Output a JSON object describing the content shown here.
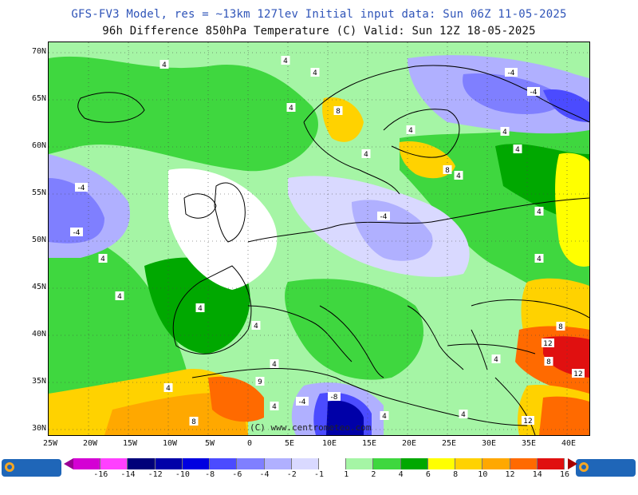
{
  "title_line1": "GFS-FV3 Model, res = ~13km 127lev   Initial input data: Sun 06Z 11-05-2025",
  "title_line2": "96h Difference 850hPa Temperature (C)  Valid: Sun 12Z 18-05-2025",
  "watermark": "(C) www.centrometeo.com",
  "logo_left": "centrometeo",
  "logo_right": "centrometeo",
  "y_axis_labels": [
    "70N",
    "65N",
    "60N",
    "55N",
    "50N",
    "45N",
    "40N",
    "35N",
    "30N"
  ],
  "x_axis_labels": [
    "25W",
    "20W",
    "15W",
    "10W",
    "5W",
    "0",
    "5E",
    "10E",
    "15E",
    "20E",
    "25E",
    "30E",
    "35E",
    "40E"
  ],
  "legend": {
    "ticks": [
      "-16",
      "-14",
      "-12",
      "-10",
      "-8",
      "-6",
      "-4",
      "-2",
      "-1",
      "1",
      "2",
      "4",
      "6",
      "8",
      "10",
      "12",
      "14",
      "16"
    ],
    "colors": [
      "#9a0094",
      "#d400d4",
      "#ff40ff",
      "#00007a",
      "#0000a8",
      "#0000e0",
      "#4b4bff",
      "#7f7fff",
      "#b0b0ff",
      "#d9d9ff",
      "#ffffff",
      "#a5f5a5",
      "#3fd73f",
      "#00a800",
      "#ffff00",
      "#ffd200",
      "#ffa800",
      "#ff6a00",
      "#e01010",
      "#a80000"
    ],
    "arrow_left_color": "#9a0094",
    "arrow_right_color": "#a80000"
  },
  "contour_labels": [
    {
      "text": "4"
    },
    {
      "text": "4"
    },
    {
      "text": "4"
    },
    {
      "text": "4"
    },
    {
      "text": "8"
    },
    {
      "text": "-4"
    },
    {
      "text": "-4"
    },
    {
      "text": "4"
    },
    {
      "text": "4"
    },
    {
      "text": "8"
    },
    {
      "text": "4"
    },
    {
      "text": "4"
    },
    {
      "text": "-4"
    },
    {
      "text": "-4"
    },
    {
      "text": "-4"
    },
    {
      "text": "4"
    },
    {
      "text": "4"
    },
    {
      "text": "4"
    },
    {
      "text": "4"
    },
    {
      "text": "4"
    },
    {
      "text": "4"
    },
    {
      "text": "4"
    },
    {
      "text": "8"
    },
    {
      "text": "12"
    },
    {
      "text": "8"
    },
    {
      "text": "4"
    },
    {
      "text": "12"
    },
    {
      "text": "4"
    },
    {
      "text": "9"
    },
    {
      "text": "4"
    },
    {
      "text": "-4"
    },
    {
      "text": "-8"
    },
    {
      "text": "4"
    },
    {
      "text": "4"
    },
    {
      "text": "12"
    },
    {
      "text": "8"
    },
    {
      "text": "4"
    }
  ]
}
